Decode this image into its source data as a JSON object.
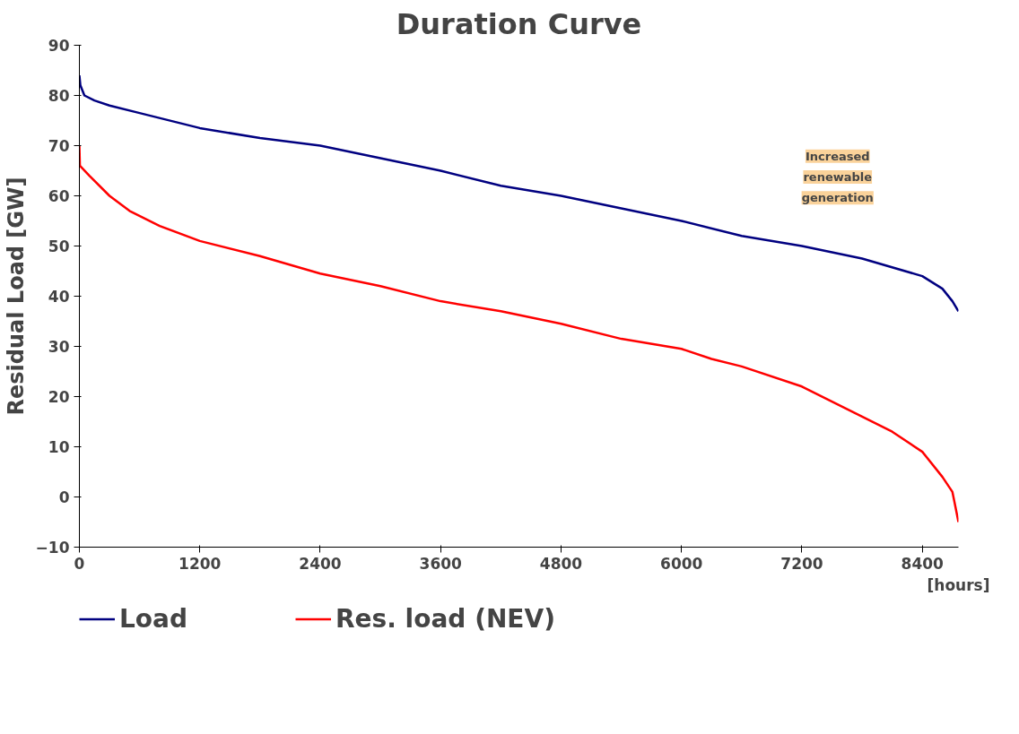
{
  "chart_data": {
    "type": "line",
    "title": "Duration Curve",
    "xlabel": "[hours]",
    "ylabel": "Residual Load [GW]",
    "xlim": [
      0,
      8760
    ],
    "xticks": [
      0,
      1200,
      2400,
      3600,
      4800,
      6000,
      7200,
      8400
    ],
    "ylim": [
      -10,
      90
    ],
    "yticks": [
      -10,
      0,
      10,
      20,
      30,
      40,
      50,
      60,
      70,
      80,
      90
    ],
    "grid": false,
    "legend": "bottom",
    "line_style": "solid",
    "marker": "none",
    "annotations": [
      "Increased renewable generation"
    ],
    "series": [
      {
        "name": "Load",
        "color": "#000080",
        "x": [
          0,
          10,
          50,
          150,
          300,
          600,
          1200,
          1800,
          2400,
          3000,
          3600,
          4200,
          4800,
          5400,
          6000,
          6600,
          7200,
          7800,
          8400,
          8600,
          8700,
          8760
        ],
        "values": [
          84,
          82,
          80,
          79,
          78,
          76.5,
          73.5,
          71.5,
          70,
          67.5,
          65,
          62,
          60,
          57.5,
          55,
          52,
          50,
          47.5,
          44,
          41.5,
          39,
          37
        ]
      },
      {
        "name": "Res. load (NEV)",
        "color": "#ff0000",
        "x": [
          0,
          5,
          100,
          300,
          500,
          800,
          1200,
          1800,
          2400,
          3000,
          3600,
          4200,
          4800,
          5400,
          6000,
          6300,
          6600,
          7200,
          7800,
          8100,
          8400,
          8600,
          8700,
          8720,
          8760
        ],
        "values": [
          70,
          66,
          64,
          60,
          57,
          54,
          51,
          48,
          44.5,
          42,
          39,
          37,
          34.5,
          31.5,
          29.5,
          27.5,
          26,
          22,
          16,
          13,
          9,
          4,
          1,
          -1,
          -5
        ]
      }
    ]
  }
}
